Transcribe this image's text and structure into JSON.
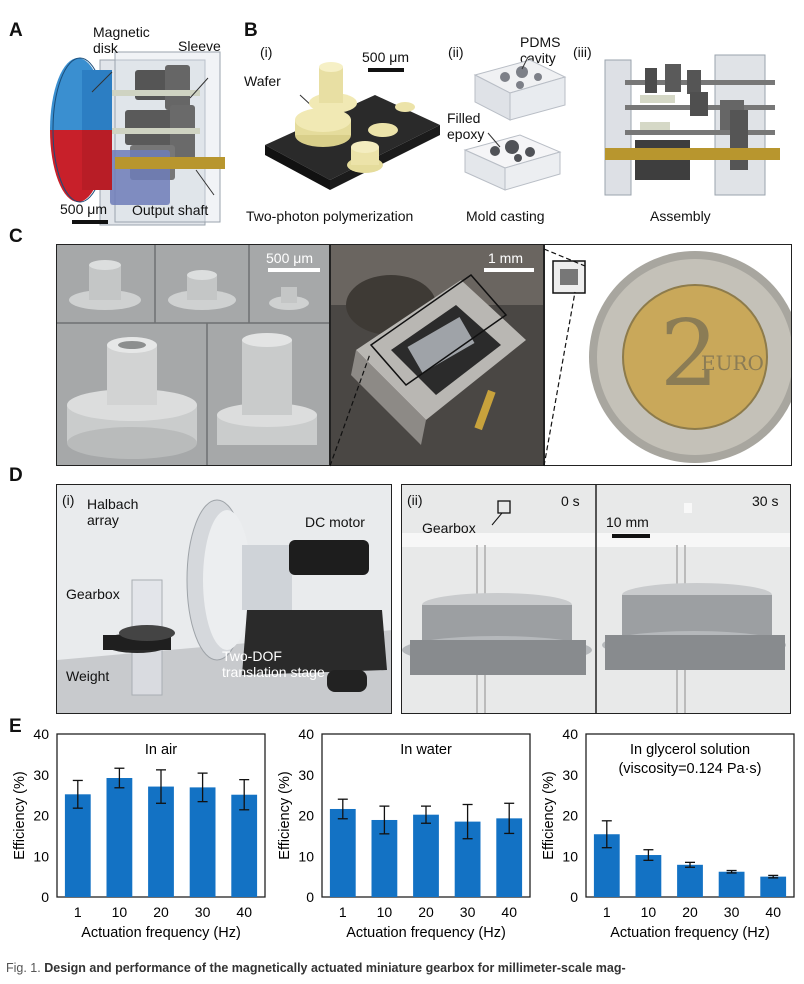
{
  "panels": {
    "A": {
      "letter": "A",
      "labels": {
        "disk": "Magnetic\ndisk",
        "sleeve": "Sleeve",
        "shaft": "Output shaft",
        "scale": "500 μm"
      },
      "colors": {
        "disk_top": "#3a8fd0",
        "disk_bottom": "#c8202a",
        "shaft": "#b8962e"
      }
    },
    "B": {
      "letter": "B",
      "steps": [
        {
          "roman": "(i)",
          "title": "Two-photon polymerization",
          "labels": [
            "Wafer"
          ],
          "scale": "500 μm"
        },
        {
          "roman": "(ii)",
          "title": "Mold casting",
          "labels": [
            "PDMS\ncavity",
            "Filled\nepoxy"
          ]
        },
        {
          "roman": "(iii)",
          "title": "Assembly",
          "labels": []
        }
      ]
    },
    "C": {
      "letter": "C",
      "scale_left": "500 μm",
      "scale_mid": "1 mm",
      "coin_text": "EURO",
      "coin_numeral": "2"
    },
    "D": {
      "letter": "D",
      "left": {
        "roman": "(i)",
        "labels": {
          "halbach": "Halbach\narray",
          "motor": "DC motor",
          "gearbox": "Gearbox",
          "weight": "Weight",
          "stage": "Two-DOF\ntranslation stage"
        }
      },
      "right": {
        "roman": "(ii)",
        "gearbox": "Gearbox",
        "time_left": "0 s",
        "time_right": "30 s",
        "scale": "10 mm"
      }
    },
    "E": {
      "letter": "E"
    }
  },
  "chart_data": [
    {
      "type": "bar",
      "title": "In air",
      "categories": [
        "1",
        "10",
        "20",
        "30",
        "40"
      ],
      "values": [
        25.2,
        29.2,
        27.1,
        26.9,
        25.1
      ],
      "errors": [
        3.4,
        2.4,
        4.1,
        3.5,
        3.7
      ],
      "xlabel": "Actuation frequency (Hz)",
      "ylabel": "Efficiency (%)",
      "ylim": [
        0,
        40
      ],
      "yticks": [
        0,
        10,
        20,
        30,
        40
      ],
      "color": "#1372c4"
    },
    {
      "type": "bar",
      "title": "In water",
      "categories": [
        "1",
        "10",
        "20",
        "30",
        "40"
      ],
      "values": [
        21.6,
        18.9,
        20.2,
        18.5,
        19.3
      ],
      "errors": [
        2.4,
        3.4,
        2.1,
        4.2,
        3.7
      ],
      "xlabel": "Actuation frequency (Hz)",
      "ylabel": "Efficiency (%)",
      "ylim": [
        0,
        40
      ],
      "yticks": [
        0,
        10,
        20,
        30,
        40
      ],
      "color": "#1372c4"
    },
    {
      "type": "bar",
      "title": "In glycerol solution\n(viscosity=0.124 Pa·s)",
      "categories": [
        "1",
        "10",
        "20",
        "30",
        "40"
      ],
      "values": [
        15.4,
        10.3,
        7.9,
        6.2,
        5.0
      ],
      "errors": [
        3.3,
        1.3,
        0.6,
        0.3,
        0.3
      ],
      "xlabel": "Actuation frequency (Hz)",
      "ylabel": "Efficiency (%)",
      "ylim": [
        0,
        40
      ],
      "yticks": [
        0,
        10,
        20,
        30,
        40
      ],
      "color": "#1372c4"
    }
  ],
  "caption": {
    "fig_label": "Fig. 1.",
    "text": "Design and performance of the magnetically actuated miniature gearbox for millimeter-scale mag-"
  }
}
